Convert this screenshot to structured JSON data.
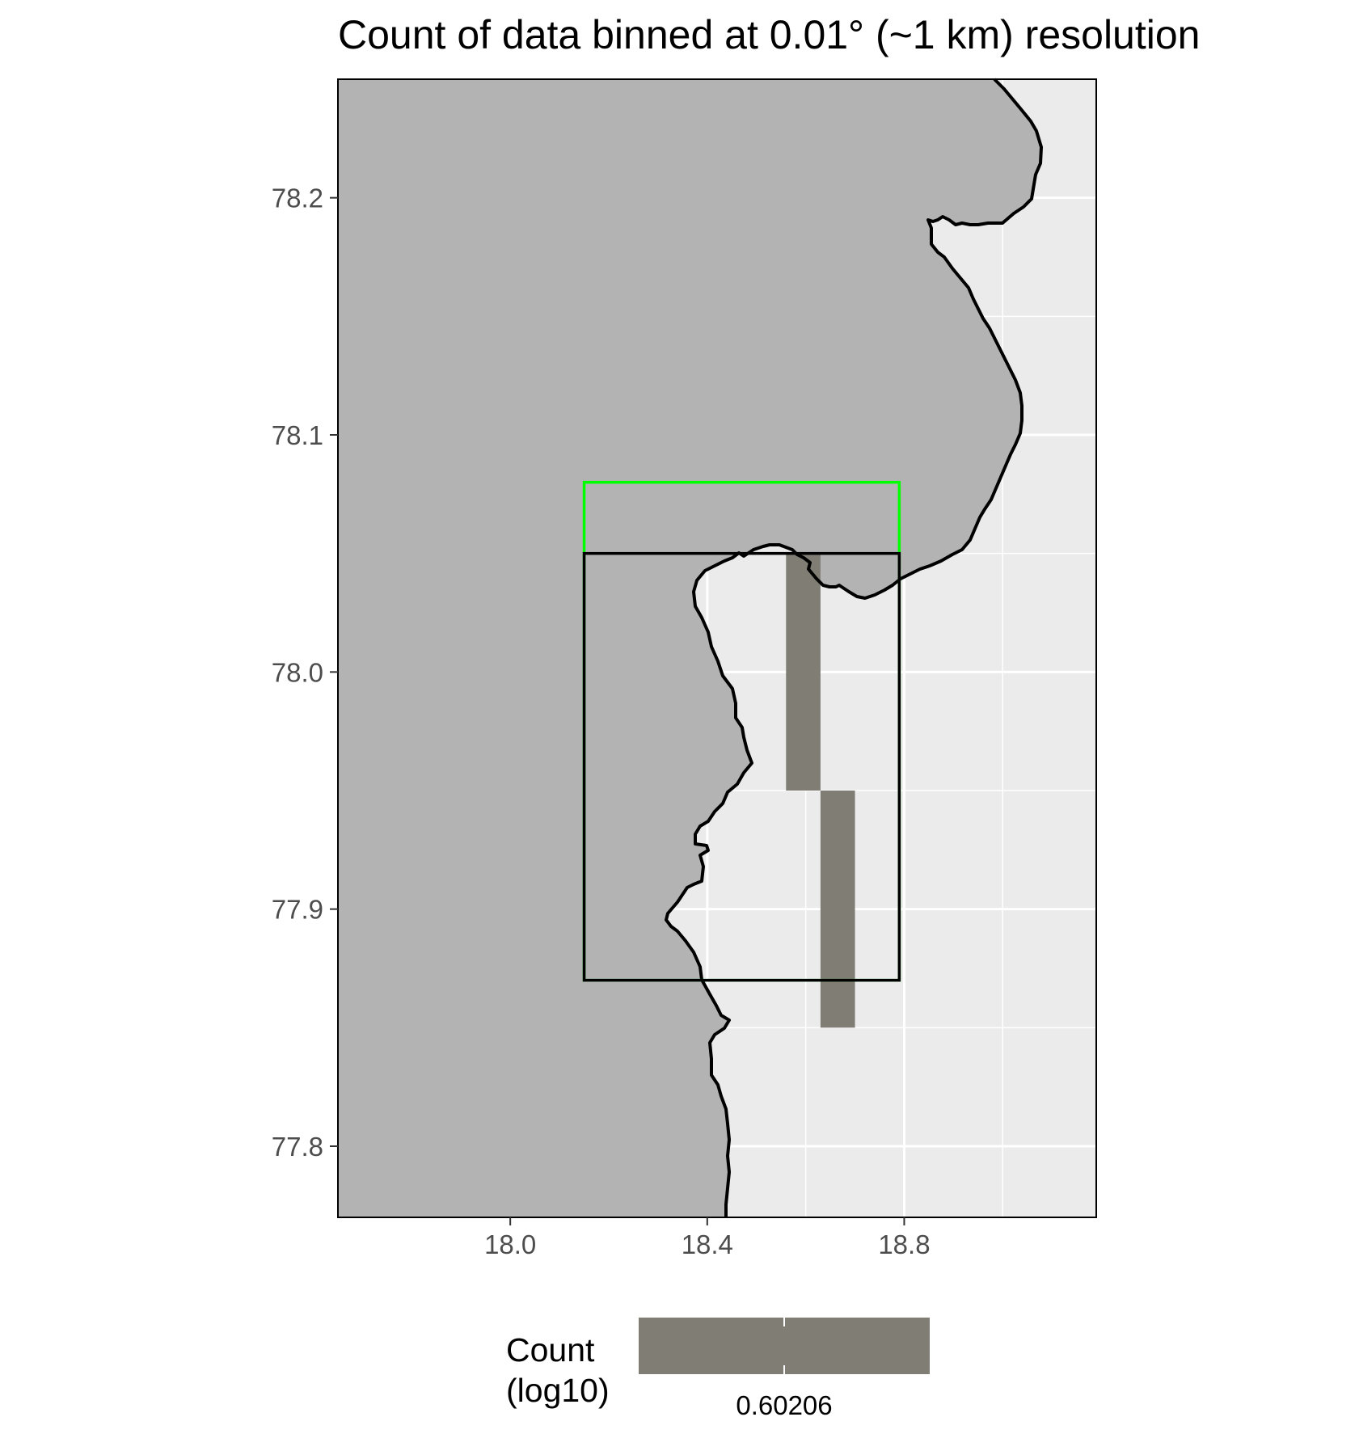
{
  "title": "Count of data binned at 0.01° (~1 km) resolution",
  "colors": {
    "land": "#b3b3b3",
    "sea": "#ebebeb",
    "grid": "#ffffff",
    "coastline": "#000000",
    "tile": "#7f7d74",
    "box_outer": "#00ff00",
    "box_inner": "#000000"
  },
  "map": {
    "x_ticks": [
      "18.0",
      "18.4",
      "18.8"
    ],
    "y_ticks": [
      "78.2",
      "78.1",
      "78.0",
      "77.9",
      "77.8"
    ]
  },
  "chart_data": {
    "type": "heatmap",
    "xlabel": "",
    "ylabel": "",
    "xlim": [
      17.65,
      19.19
    ],
    "ylim": [
      77.77,
      78.25
    ],
    "x_ticks": [
      18.0,
      18.4,
      18.8
    ],
    "y_ticks": [
      77.8,
      77.9,
      78.0,
      78.1,
      78.2
    ],
    "tiles": [
      {
        "xmin": 18.56,
        "xmax": 18.63,
        "ymin": 77.95,
        "ymax": 78.05,
        "value": 0.60206
      },
      {
        "xmin": 18.63,
        "xmax": 18.7,
        "ymin": 77.85,
        "ymax": 77.95,
        "value": 0.60206
      }
    ],
    "boxes": [
      {
        "color": "green",
        "xmin": 18.15,
        "xmax": 18.79,
        "ymin": 77.87,
        "ymax": 78.08
      },
      {
        "color": "black",
        "xmin": 18.15,
        "xmax": 18.79,
        "ymin": 77.87,
        "ymax": 78.05
      }
    ],
    "legend": {
      "title_line1": "Count",
      "title_line2": "(log10)",
      "tick": "0.60206",
      "placement": "bottom"
    }
  }
}
